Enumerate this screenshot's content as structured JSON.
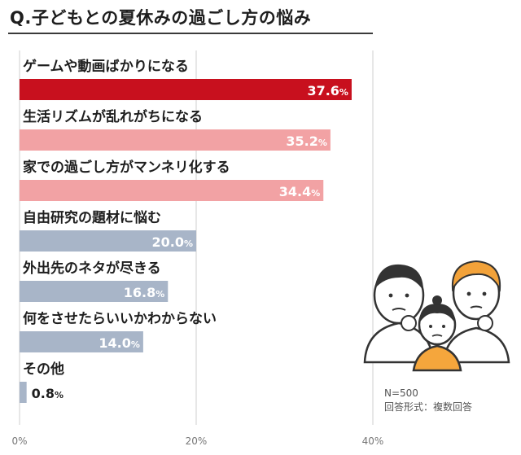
{
  "title": "Q.子どもとの夏休みの過ごし方の悩み",
  "note": {
    "n": "N=500",
    "format": "回答形式：複数回答"
  },
  "colors": {
    "top": "#c8101e",
    "high": "#f2a2a4",
    "mid": "#a8b5c8",
    "low": "#a8b5c8",
    "axis": "#cfcfcf"
  },
  "chart_data": {
    "type": "bar",
    "orientation": "horizontal",
    "unit": "%",
    "categories": [
      "ゲームや動画ばかりになる",
      "生活リズムが乱れがちになる",
      "家での過ごし方がマンネリ化する",
      "自由研究の題材に悩む",
      "外出先のネタが尽きる",
      "何をさせたらいいかわからない",
      "その他"
    ],
    "values": [
      37.6,
      35.2,
      34.4,
      20.0,
      16.8,
      14.0,
      0.8
    ],
    "value_labels": [
      "37.6",
      "35.2",
      "34.4",
      "20.0",
      "16.8",
      "14.0",
      "0.8"
    ],
    "bar_colors": [
      "#c8101e",
      "#f2a2a4",
      "#f2a2a4",
      "#a8b5c8",
      "#a8b5c8",
      "#a8b5c8",
      "#a8b5c8"
    ],
    "xlim": [
      0,
      40
    ],
    "xticks": [
      0,
      20,
      40
    ],
    "xtick_labels": [
      "0%",
      "20%",
      "40%"
    ],
    "grid": true
  }
}
